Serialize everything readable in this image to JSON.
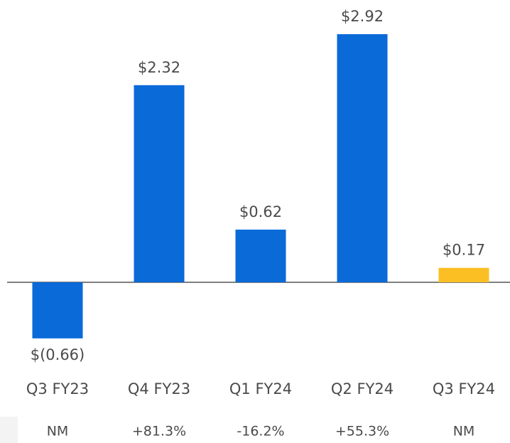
{
  "chart_data": {
    "type": "bar",
    "categories": [
      "Q3 FY23",
      "Q4 FY23",
      "Q1 FY24",
      "Q2 FY24",
      "Q3 FY24"
    ],
    "values": [
      -0.66,
      2.32,
      0.62,
      2.92,
      0.17
    ],
    "value_labels": [
      "$(0.66)",
      "$2.32",
      "$0.62",
      "$2.92",
      "$0.17"
    ],
    "colors": [
      "#0a6ad8",
      "#0a6ad8",
      "#0a6ad8",
      "#0a6ad8",
      "#fbbf24"
    ],
    "row_labels": [
      "NM",
      "+81.3%",
      "-16.2%",
      "+55.3%",
      "NM"
    ]
  }
}
